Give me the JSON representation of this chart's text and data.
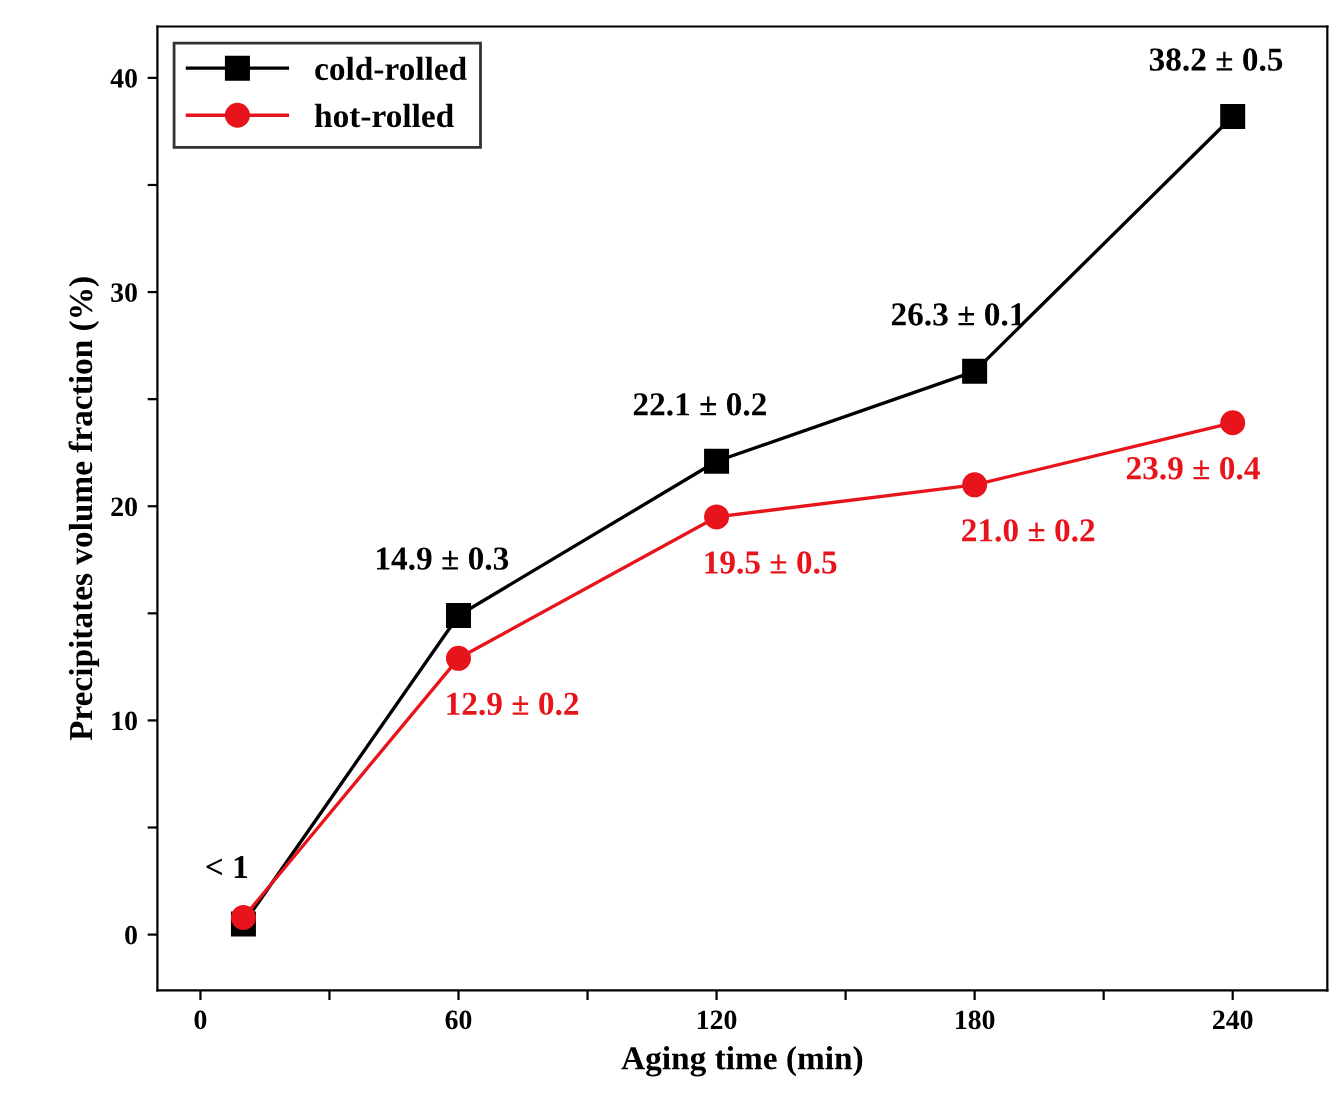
{
  "chart_data": {
    "type": "line",
    "xlabel": "Aging time (min)",
    "ylabel": "Precipitates volume fraction (%)",
    "x": [
      10,
      60,
      120,
      180,
      240
    ],
    "series": [
      {
        "name": "cold-rolled",
        "color": "#000000",
        "marker": "square",
        "values": [
          0.5,
          14.9,
          22.1,
          26.3,
          38.2
        ],
        "value_labels": [
          "< 1",
          "14.9 ± 0.3",
          "22.1 ± 0.2",
          "26.3 ± 0.1",
          "38.2 ± 0.5"
        ]
      },
      {
        "name": "hot-rolled",
        "color": "#e8141c",
        "marker": "circle",
        "values": [
          0.8,
          12.9,
          19.5,
          21.0,
          23.9
        ],
        "value_labels": [
          null,
          "12.9 ± 0.2",
          "19.5 ± 0.5",
          "21.0 ± 0.2",
          "23.9 ± 0.4"
        ]
      }
    ],
    "xlim": [
      -10,
      262
    ],
    "ylim": [
      -2.6,
      42.4
    ],
    "xticks": [
      0,
      {
        "value": 30,
        "label": null
      },
      60,
      {
        "value": 90,
        "label": null
      },
      120,
      {
        "value": 150,
        "label": null
      },
      180,
      {
        "value": 210,
        "label": null
      },
      240
    ],
    "yticks": [
      0,
      {
        "value": 5,
        "label": null
      },
      10,
      {
        "value": 15,
        "label": null
      },
      20,
      {
        "value": 25,
        "label": null
      },
      30,
      {
        "value": 35,
        "label": null
      },
      40
    ],
    "grid": false,
    "legend": "top left",
    "line_style": "solid"
  }
}
